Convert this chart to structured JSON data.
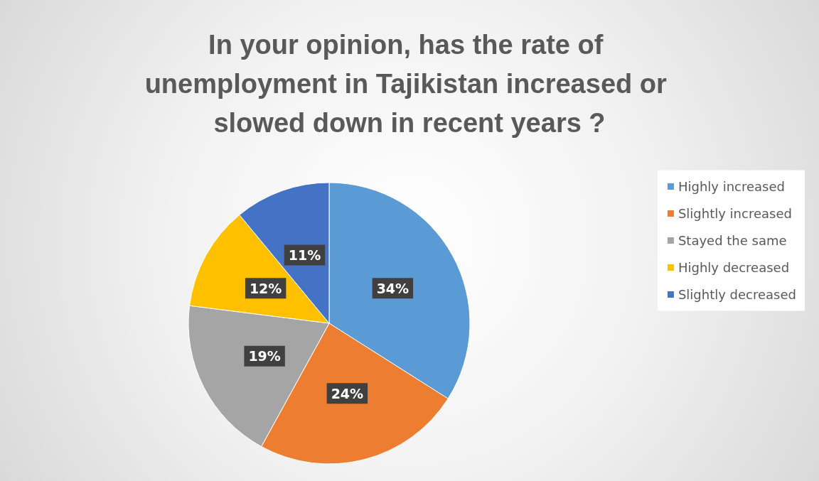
{
  "chart_data": {
    "type": "pie",
    "title": "In your opinion, has the rate of unemployment in Tajikistan increased or slowed down in recent years ?",
    "categories": [
      "Highly increased",
      "Slightly increased",
      "Stayed the same",
      "Highly decreased",
      "Slightly decreased"
    ],
    "values": [
      34,
      24,
      19,
      12,
      11
    ],
    "colors": [
      "#5b9bd5",
      "#ed7d31",
      "#a5a5a5",
      "#ffc000",
      "#4472c4"
    ],
    "value_labels": [
      "34%",
      "24%",
      "19%",
      "12%",
      "11%"
    ],
    "legend": "right"
  }
}
